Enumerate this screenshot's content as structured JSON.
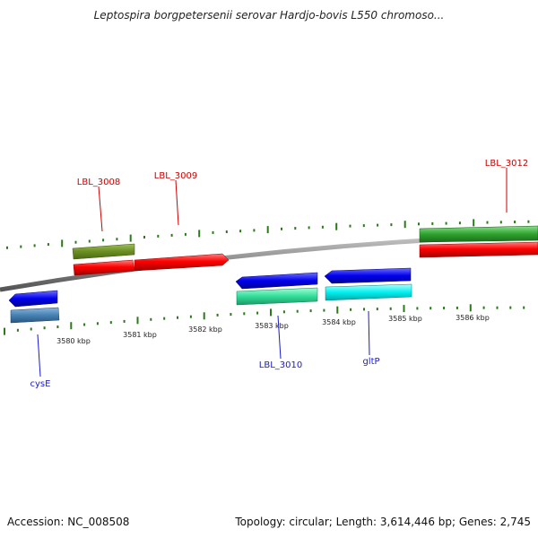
{
  "title": "Leptospira borgpetersenii serovar Hardjo-bovis L550 chromoso...",
  "accession": "Accession: NC_008508",
  "topology": "Topology: circular; Length: 3,614,446 bp; Genes: 2,745",
  "ticks": {
    "lower": [
      "3580 kbp",
      "3581 kbp",
      "3582 kbp",
      "3583 kbp",
      "3584 kbp",
      "3585 kbp",
      "3586 kbp"
    ]
  },
  "genes": {
    "lbl_3008": "LBL_3008",
    "lbl_3009": "LBL_3009",
    "lbl_3012": "LBL_3012",
    "lbl_3010": "LBL_3010",
    "gltp": "gltP",
    "cyse": "cysE"
  },
  "colors": {
    "forward_label": "#cc0000",
    "reverse_label": "#1a1acc",
    "backbone": "#8a8a8a",
    "tick": "#2a7a1a"
  }
}
